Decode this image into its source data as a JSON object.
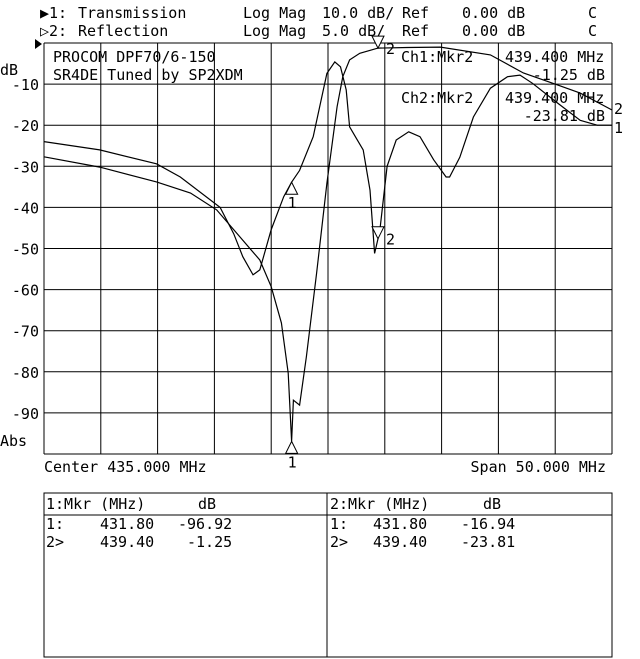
{
  "header": {
    "ch1": {
      "prefix": "▶1:",
      "name": "Transmission",
      "format": "Log Mag",
      "scale": "10.0 dB/",
      "ref_label": "Ref",
      "ref": "0.00 dB",
      "flag": "C"
    },
    "ch2": {
      "prefix": "▷2:",
      "name": "Reflection",
      "format": "Log Mag",
      "scale": "5.0 dB/",
      "ref_label": "Ref",
      "ref": "0.00 dB",
      "flag": "C"
    }
  },
  "annotation": {
    "line1": "PROCOM DPF70/6-150",
    "line2": "SR4DE Tuned by SP2XDM",
    "ch1_marker_label": "Ch1:Mkr2",
    "ch1_marker_freq": "439.400 MHz",
    "ch1_marker_value": "-1.25 dB",
    "ch2_marker_label": "Ch2:Mkr2",
    "ch2_marker_freq": "439.400 MHz",
    "ch2_marker_value": "-23.81 dB"
  },
  "footer": {
    "center": "Center 435.000 MHz",
    "span": "Span 50.000 MHz"
  },
  "marker_table": {
    "ch1": {
      "title": "1:Mkr (MHz)",
      "unit": "dB",
      "rows": [
        {
          "id": "1:",
          "freq": "431.80",
          "value": "-96.92"
        },
        {
          "id": "2>",
          "freq": "439.40",
          "value": "-1.25"
        }
      ]
    },
    "ch2": {
      "title": "2:Mkr (MHz)",
      "unit": "dB",
      "rows": [
        {
          "id": "1:",
          "freq": "431.80",
          "value": "-16.94"
        },
        {
          "id": "2>",
          "freq": "439.40",
          "value": "-23.81"
        }
      ]
    }
  },
  "chart_data": {
    "type": "line",
    "ylabel": "dB",
    "ylabel_bottom": "Abs",
    "yticks": [
      "-10",
      "-20",
      "-30",
      "-40",
      "-50",
      "-60",
      "-70",
      "-80",
      "-90"
    ],
    "xlim": [
      410,
      460
    ],
    "grid": true,
    "series": [
      {
        "name": "Transmission",
        "ylim": [
          -100,
          0
        ],
        "end_label": "1",
        "points": [
          [
            410,
            -27.7
          ],
          [
            414.9,
            -30.2
          ],
          [
            419.9,
            -33.8
          ],
          [
            422.9,
            -36.5
          ],
          [
            425.2,
            -40.6
          ],
          [
            429.0,
            -52.8
          ],
          [
            430.0,
            -59.3
          ],
          [
            430.9,
            -68.1
          ],
          [
            431.5,
            -80.3
          ],
          [
            431.8,
            -96.9
          ],
          [
            431.95,
            -86.9
          ],
          [
            432.5,
            -88.1
          ],
          [
            433.1,
            -76.3
          ],
          [
            434.0,
            -56
          ],
          [
            434.9,
            -34.1
          ],
          [
            435.8,
            -15.5
          ],
          [
            436.3,
            -8.2
          ],
          [
            436.9,
            -4.1
          ],
          [
            437.8,
            -2.5
          ],
          [
            439.4,
            -1.25
          ],
          [
            442,
            -1.1
          ],
          [
            444.9,
            -1.0
          ],
          [
            449.3,
            -2.9
          ],
          [
            452.2,
            -7.3
          ],
          [
            455.2,
            -10.2
          ],
          [
            457.2,
            -12.2
          ],
          [
            460,
            -16.3
          ]
        ],
        "markers": [
          {
            "id": "1",
            "freq": 431.8,
            "db": -96.92
          },
          {
            "id": "2",
            "freq": 439.4,
            "db": -1.25
          }
        ]
      },
      {
        "name": "Reflection",
        "ylim": [
          -50,
          0
        ],
        "end_label": "2",
        "points": [
          [
            410,
            -12.0
          ],
          [
            414.9,
            -13.0
          ],
          [
            419.9,
            -14.7
          ],
          [
            422.0,
            -16.3
          ],
          [
            425.5,
            -20.0
          ],
          [
            426.7,
            -23.2
          ],
          [
            427.5,
            -26.0
          ],
          [
            428.4,
            -28.2
          ],
          [
            429.0,
            -27.6
          ],
          [
            430.0,
            -22.7
          ],
          [
            431.1,
            -18.7
          ],
          [
            431.8,
            -16.94
          ],
          [
            432.5,
            -15.5
          ],
          [
            433.7,
            -11.4
          ],
          [
            434.9,
            -3.7
          ],
          [
            435.6,
            -2.3
          ],
          [
            436.1,
            -2.9
          ],
          [
            436.6,
            -5.7
          ],
          [
            436.9,
            -10.2
          ],
          [
            437.5,
            -11.6
          ],
          [
            438.1,
            -13.0
          ],
          [
            438.7,
            -17.9
          ],
          [
            439.1,
            -25.6
          ],
          [
            439.4,
            -23.81
          ],
          [
            439.6,
            -22.3
          ],
          [
            440.2,
            -15.0
          ],
          [
            441.0,
            -11.8
          ],
          [
            442.1,
            -10.8
          ],
          [
            443.1,
            -11.4
          ],
          [
            444.3,
            -14.2
          ],
          [
            445.4,
            -16.3
          ],
          [
            445.7,
            -16.3
          ],
          [
            446.6,
            -13.9
          ],
          [
            447.8,
            -9.0
          ],
          [
            449.3,
            -5.5
          ],
          [
            450.8,
            -4.1
          ],
          [
            451.9,
            -3.9
          ],
          [
            453.0,
            -4.9
          ],
          [
            455.2,
            -7.3
          ],
          [
            457.2,
            -9.4
          ],
          [
            458.7,
            -10.0
          ],
          [
            460,
            -10.0
          ]
        ],
        "markers": [
          {
            "id": "1",
            "freq": 431.8,
            "db": -16.94
          },
          {
            "id": "2",
            "freq": 439.4,
            "db": -23.81
          }
        ]
      }
    ]
  }
}
